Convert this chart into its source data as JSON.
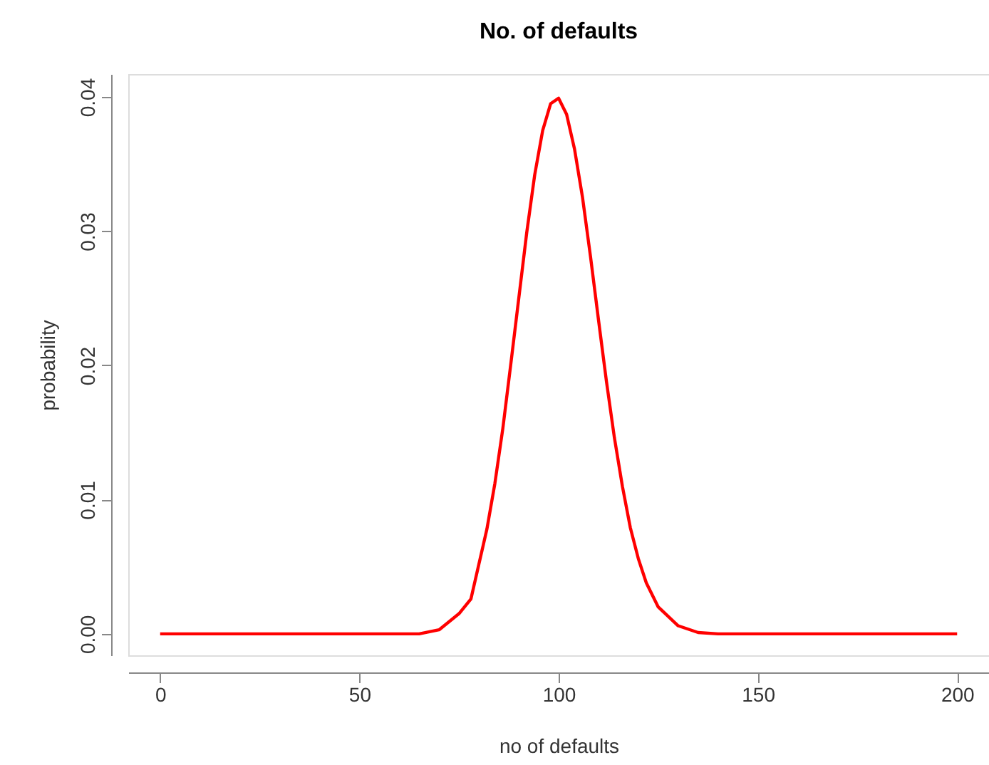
{
  "chart_data": {
    "type": "line",
    "title": "No. of defaults",
    "xlabel": "no of defaults",
    "ylabel": "probability",
    "x": [
      0,
      50,
      60,
      65,
      70,
      75,
      78,
      80,
      82,
      84,
      86,
      88,
      90,
      92,
      94,
      96,
      98,
      100,
      102,
      104,
      106,
      108,
      110,
      112,
      114,
      116,
      118,
      120,
      122,
      125,
      130,
      135,
      140,
      150,
      200
    ],
    "series": [
      {
        "color": "#ff0000",
        "values": [
          0,
          0,
          0,
          0,
          0.0003,
          0.0015,
          0.0026,
          0.0052,
          0.0078,
          0.0112,
          0.0153,
          0.0201,
          0.025,
          0.0299,
          0.0342,
          0.0375,
          0.0395,
          0.0399,
          0.0387,
          0.0361,
          0.0325,
          0.0281,
          0.0234,
          0.0188,
          0.0146,
          0.011,
          0.0079,
          0.0056,
          0.0038,
          0.002,
          0.0006,
          0.0001,
          0,
          0,
          0
        ]
      }
    ],
    "xlim": [
      -8,
      208
    ],
    "ylim": [
      -0.0016,
      0.0417
    ],
    "xticks": [
      0,
      50,
      100,
      150,
      200
    ],
    "yticks": [
      {
        "value": 0,
        "label": "0.00"
      },
      {
        "value": 0.01,
        "label": "0.01"
      },
      {
        "value": 0.02,
        "label": "0.02"
      },
      {
        "value": 0.03,
        "label": "0.03"
      },
      {
        "value": 0.04,
        "label": "0.04"
      }
    ],
    "grid": false,
    "legend": false,
    "marker": "none",
    "line_style": "solid"
  }
}
